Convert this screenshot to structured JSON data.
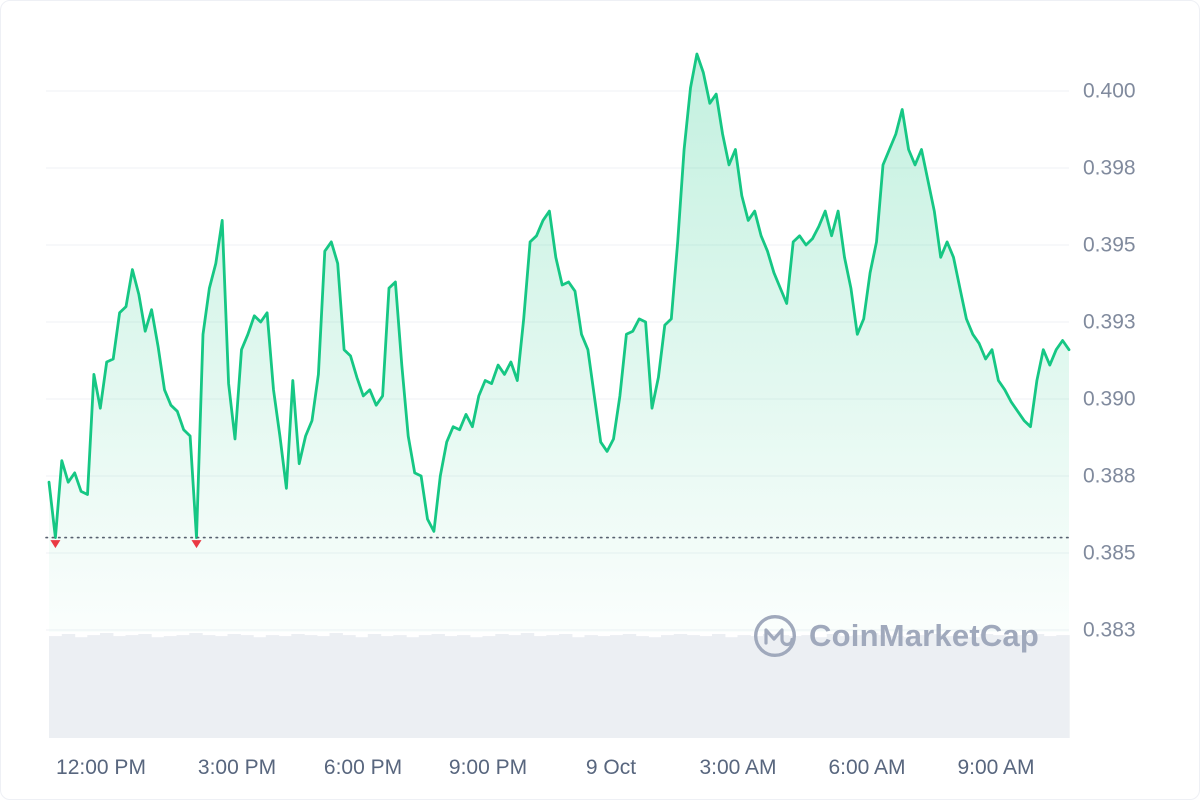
{
  "watermark": {
    "text": "CoinMarketCap"
  },
  "chart_data": {
    "type": "area",
    "title": "",
    "xlabel": "",
    "ylabel": "",
    "y_axis_side": "right",
    "grid": "horizontal-only",
    "y_range": [
      0.3825,
      0.4025
    ],
    "y_ticks": [
      {
        "label": "0.400",
        "value": 0.4
      },
      {
        "label": "0.398",
        "value": 0.3975
      },
      {
        "label": "0.395",
        "value": 0.395
      },
      {
        "label": "0.393",
        "value": 0.3925
      },
      {
        "label": "0.390",
        "value": 0.39
      },
      {
        "label": "0.388",
        "value": 0.3875
      },
      {
        "label": "0.385",
        "value": 0.385
      },
      {
        "label": "0.383",
        "value": 0.3825
      }
    ],
    "x_ticks": [
      {
        "label": "12:00 PM",
        "t": 0.051
      },
      {
        "label": "3:00 PM",
        "t": 0.1843
      },
      {
        "label": "6:00 PM",
        "t": 0.3078
      },
      {
        "label": "9:00 PM",
        "t": 0.4304
      },
      {
        "label": "9 Oct",
        "t": 0.551
      },
      {
        "label": "3:00 AM",
        "t": 0.6755
      },
      {
        "label": "6:00 AM",
        "t": 0.802
      },
      {
        "label": "9:00 AM",
        "t": 0.9284
      }
    ],
    "low_line": {
      "value": 0.3855
    },
    "low_marker_indices": [
      1,
      23
    ],
    "prices": [
      0.3873,
      0.3855,
      0.388,
      0.3873,
      0.3876,
      0.387,
      0.3869,
      0.3908,
      0.3897,
      0.3912,
      0.3913,
      0.3928,
      0.393,
      0.3942,
      0.3934,
      0.3922,
      0.3929,
      0.3917,
      0.3903,
      0.3898,
      0.3896,
      0.389,
      0.3888,
      0.3855,
      0.3921,
      0.3936,
      0.3944,
      0.3958,
      0.3905,
      0.3887,
      0.3916,
      0.3921,
      0.3927,
      0.3925,
      0.3928,
      0.3903,
      0.3888,
      0.3871,
      0.3906,
      0.3879,
      0.3888,
      0.3893,
      0.3908,
      0.3948,
      0.3951,
      0.3944,
      0.3916,
      0.3914,
      0.3907,
      0.3901,
      0.3903,
      0.3898,
      0.3901,
      0.3936,
      0.3938,
      0.3911,
      0.3888,
      0.3876,
      0.3875,
      0.3861,
      0.3857,
      0.3875,
      0.3886,
      0.3891,
      0.389,
      0.3895,
      0.3891,
      0.3901,
      0.3906,
      0.3905,
      0.3911,
      0.3908,
      0.3912,
      0.3906,
      0.3926,
      0.3951,
      0.3953,
      0.3958,
      0.3961,
      0.3946,
      0.3937,
      0.3938,
      0.3935,
      0.3921,
      0.3916,
      0.3901,
      0.3886,
      0.3883,
      0.3887,
      0.3901,
      0.3921,
      0.3922,
      0.3926,
      0.3925,
      0.3897,
      0.3907,
      0.3924,
      0.3926,
      0.3951,
      0.3981,
      0.4001,
      0.4012,
      0.4006,
      0.3996,
      0.3999,
      0.3986,
      0.3976,
      0.3981,
      0.3966,
      0.3958,
      0.3961,
      0.3953,
      0.3948,
      0.3941,
      0.3936,
      0.3931,
      0.3951,
      0.3953,
      0.395,
      0.3952,
      0.3956,
      0.3961,
      0.3953,
      0.3961,
      0.3946,
      0.3936,
      0.3921,
      0.3926,
      0.3941,
      0.3951,
      0.3976,
      0.3981,
      0.3986,
      0.3994,
      0.3981,
      0.3976,
      0.3981,
      0.3971,
      0.3961,
      0.3946,
      0.3951,
      0.3946,
      0.3936,
      0.3926,
      0.3921,
      0.3918,
      0.3913,
      0.3916,
      0.3906,
      0.3903,
      0.3899,
      0.3896,
      0.3893,
      0.3891,
      0.3906,
      0.3916,
      0.3911,
      0.3916,
      0.3919,
      0.3916
    ],
    "volume": [
      0.97,
      0.99,
      0.96,
      0.98,
      1,
      0.97,
      0.98,
      0.99,
      0.96,
      0.97,
      0.98,
      1,
      0.98,
      0.97,
      0.99,
      0.98,
      0.96,
      0.98,
      0.97,
      0.99,
      0.98,
      0.97,
      1,
      0.98,
      0.96,
      0.99,
      0.97,
      0.98,
      0.96,
      0.98,
      0.99,
      0.97,
      0.98,
      0.96,
      0.97,
      0.99,
      0.98,
      1,
      0.97,
      0.98,
      0.99,
      0.96,
      0.98,
      0.97,
      0.98,
      0.99,
      0.97,
      0.96,
      0.98,
      0.99,
      0.98,
      0.97,
      0.99,
      0.96,
      0.98,
      0.97,
      0.99,
      0.98,
      0.97,
      0.98,
      0.96,
      0.99,
      0.97,
      0.98,
      1,
      0.98,
      0.97,
      0.96,
      0.98,
      0.99,
      0.97,
      0.98,
      0.96,
      0.99,
      0.98,
      0.97,
      0.98,
      0.99,
      0.97,
      0.98
    ],
    "colors": {
      "line_green": "#16c784",
      "fill_green_top": "rgba(22,199,132,0.26)",
      "fill_green_bottom": "rgba(22,199,132,0.02)",
      "marker_red": "#ea3943",
      "grid": "#eff2f5",
      "y_axis_text": "#808a9d",
      "x_axis_text": "#58667e",
      "volume_bar": "#eceff3",
      "dotted_line": "#57606f",
      "watermark": "#a0a9bc"
    }
  }
}
